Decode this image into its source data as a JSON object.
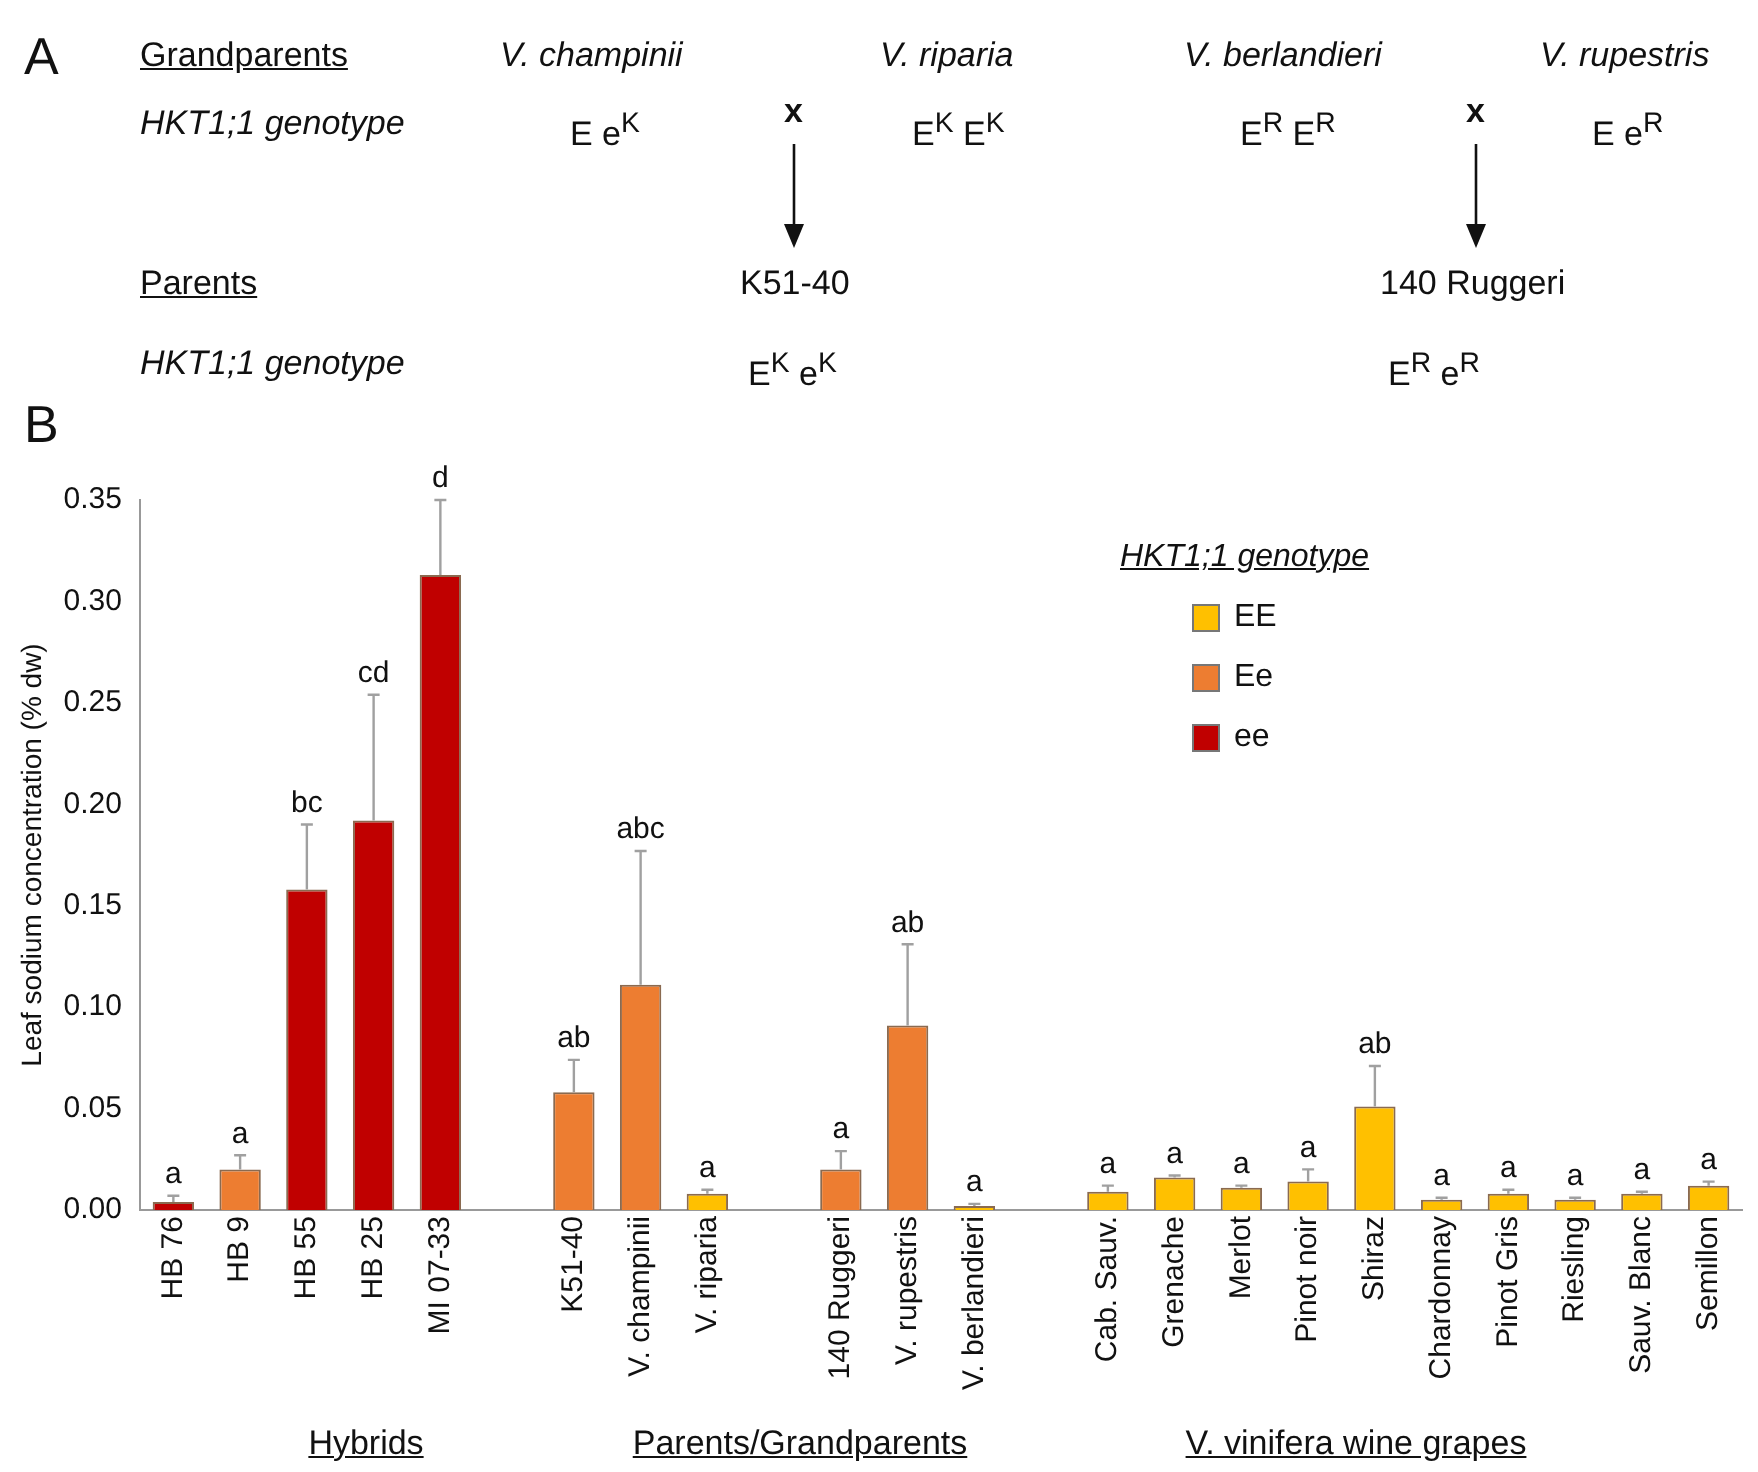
{
  "chart_data": {
    "type": "bar",
    "ylabel": "Leaf sodium concentration (% dw)",
    "legend_title": "HKT1;1 genotype",
    "legend": "top right",
    "grid": false,
    "categories": [
      "HB 76",
      "HB 9",
      "HB 55",
      "HB 25",
      "MI 07-33",
      null,
      "K51-40",
      "V. champinii",
      "V. riparia",
      null,
      "140 Ruggeri",
      "V. rupestris",
      "V. berlandieri",
      null,
      "Cab. Sauv.",
      "Grenache",
      "Merlot",
      "Pinot noir",
      "Shiraz",
      "Chardonnay",
      "Pinot Gris",
      "Riesling",
      "Sauv. Blanc",
      "Semillon"
    ],
    "ylim": [
      0,
      0.35
    ],
    "yticks": [
      {
        "value": 0,
        "label": "0.00"
      },
      0.05,
      {
        "value": 0.1,
        "label": "0.10"
      },
      0.15,
      {
        "value": 0.2,
        "label": "0.20"
      },
      0.25,
      {
        "value": 0.3,
        "label": "0.30"
      },
      0.35
    ],
    "series": [
      {
        "name": "EE",
        "color": "#ffc000",
        "values": [
          null,
          null,
          null,
          null,
          null,
          null,
          null,
          null,
          0.008,
          null,
          null,
          null,
          0.002,
          null,
          0.009,
          0.016,
          0.011,
          0.014,
          0.051,
          0.005,
          0.008,
          0.005,
          0.008,
          0.012
        ],
        "errors": [
          null,
          null,
          null,
          null,
          null,
          null,
          null,
          null,
          [
            0.008,
            0.01
          ],
          null,
          null,
          null,
          [
            0.002,
            0.003
          ],
          null,
          [
            0.009,
            0.012
          ],
          [
            0.016,
            0.017
          ],
          [
            0.011,
            0.012
          ],
          [
            0.014,
            0.02
          ],
          [
            0.051,
            0.071
          ],
          [
            0.005,
            0.006
          ],
          [
            0.008,
            0.01
          ],
          [
            0.005,
            0.006
          ],
          [
            0.008,
            0.009
          ],
          [
            0.012,
            0.014
          ]
        ]
      },
      {
        "name": "Ee",
        "color": "#ed7d31",
        "values": [
          null,
          0.02,
          null,
          null,
          null,
          null,
          0.058,
          0.111,
          null,
          null,
          0.02,
          0.091,
          null,
          null,
          null,
          null,
          null,
          null,
          null,
          null,
          null,
          null,
          null,
          null
        ],
        "errors": [
          null,
          [
            0.02,
            0.027
          ],
          null,
          null,
          null,
          null,
          [
            0.058,
            0.074
          ],
          [
            0.111,
            0.177
          ],
          null,
          null,
          [
            0.02,
            0.029
          ],
          [
            0.091,
            0.131
          ],
          null,
          null,
          null,
          null,
          null,
          null,
          null,
          null,
          null,
          null,
          null,
          null
        ]
      },
      {
        "name": "ee",
        "color": "#c00000",
        "values": [
          0.004,
          null,
          0.158,
          0.192,
          0.313,
          null,
          null,
          null,
          null,
          null,
          null,
          null,
          null,
          null,
          null,
          null,
          null,
          null,
          null,
          null,
          null,
          null,
          null,
          null
        ],
        "errors": [
          [
            0.004,
            0.007
          ],
          null,
          [
            0.158,
            0.19
          ],
          [
            0.192,
            0.254
          ],
          [
            0.313,
            0.35
          ],
          null,
          null,
          null,
          null,
          null,
          null,
          null,
          null,
          null,
          null,
          null,
          null,
          null,
          null,
          null,
          null,
          null,
          null,
          null
        ]
      }
    ],
    "annotations": [
      "A",
      "Grandparents",
      "V. champinii",
      "V. riparia",
      "V. berlandieri",
      "V. rupestris",
      "HKT1;1 genotype",
      "E e$^{K}$",
      "x",
      "E$^{K}$ E$^{K}$",
      "E$^{R}$ E$^{R}$",
      "x",
      "E e$^{R}$",
      "Parents",
      "K51-40",
      "140 Ruggeri",
      "HKT1;1 genotype",
      "E$^{K}$ e$^{K}$",
      "E$^{R}$ e$^{R}$",
      "B",
      "Hybrids",
      "Parents/Grandparents",
      "V. vinifera wine grapes",
      {
        "text": "a",
        "x": "HB 76",
        "y": 0.007
      },
      {
        "text": "a",
        "x": "HB 9",
        "y": 0.027
      },
      {
        "text": "bc",
        "x": "HB 55",
        "y": 0.19
      },
      {
        "text": "cd",
        "x": "HB 25",
        "y": 0.254
      },
      {
        "text": "d",
        "x": "MI 07-33",
        "y": 0.35
      },
      {
        "text": "ab",
        "x": "K51-40",
        "y": 0.074
      },
      {
        "text": "abc",
        "x": "V. champinii",
        "y": 0.177
      },
      {
        "text": "a",
        "x": "V. riparia",
        "y": 0.01
      },
      {
        "text": "a",
        "x": "140 Ruggeri",
        "y": 0.029
      },
      {
        "text": "ab",
        "x": "V. rupestris",
        "y": 0.131
      },
      {
        "text": "a",
        "x": "V. berlandieri",
        "y": 0.003
      },
      {
        "text": "a",
        "x": "Cab. Sauv.",
        "y": 0.012
      },
      {
        "text": "a",
        "x": "Grenache",
        "y": 0.017
      },
      {
        "text": "a",
        "x": "Merlot",
        "y": 0.012
      },
      {
        "text": "a",
        "x": "Pinot noir",
        "y": 0.02
      },
      {
        "text": "ab",
        "x": "Shiraz",
        "y": 0.071
      },
      {
        "text": "a",
        "x": "Chardonnay",
        "y": 0.006
      },
      {
        "text": "a",
        "x": "Pinot Gris",
        "y": 0.01
      },
      {
        "text": "a",
        "x": "Riesling",
        "y": 0.006
      },
      {
        "text": "a",
        "x": "Sauv. Blanc",
        "y": 0.009
      },
      {
        "text": "a",
        "x": "Semillon",
        "y": 0.014
      }
    ]
  }
}
